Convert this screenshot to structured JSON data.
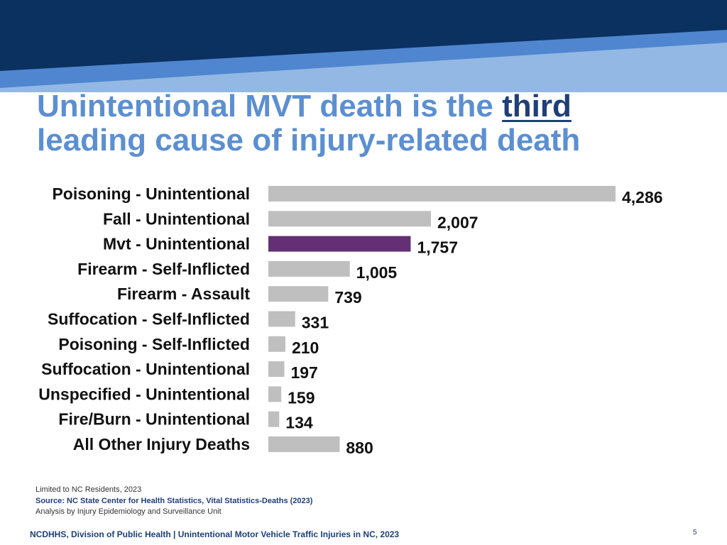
{
  "slide": {
    "title_part1": "Unintentional MVT death is the ",
    "title_emphasis": "third",
    "title_part2": "leading cause of injury-related death",
    "note_line1": "Limited to NC Residents, 2023",
    "source_line": "Source: NC State Center for Health Statistics, Vital Statistics-Deaths (2023)",
    "analysis_line": "Analysis by Injury Epidemiology and Surveillance Unit",
    "footer": "NCDHHS, Division of Public Health | Unintentional Motor Vehicle Traffic Injuries in NC, 2023",
    "page_number": "5"
  },
  "colors": {
    "banner_dark": "#0b3160",
    "banner_mid": "#4f86cf",
    "banner_light": "#93b8e4",
    "title": "#5b8fd1",
    "title_emphasis": "#1e3f78",
    "bar_default": "#bfbfbf",
    "bar_highlight": "#642f74"
  },
  "chart_data": {
    "type": "bar",
    "orientation": "horizontal",
    "categories": [
      "Poisoning - Unintentional",
      "Fall - Unintentional",
      "Mvt - Unintentional",
      "Firearm - Self-Inflicted",
      "Firearm - Assault",
      "Suffocation - Self-Inflicted",
      "Poisoning - Self-Inflicted",
      "Suffocation - Unintentional",
      "Unspecified - Unintentional",
      "Fire/Burn - Unintentional",
      "All Other Injury Deaths"
    ],
    "values": [
      4286,
      2007,
      1757,
      1005,
      739,
      331,
      210,
      197,
      159,
      134,
      880
    ],
    "value_labels": [
      "4,286",
      "2,007",
      "1,757",
      "1,005",
      "739",
      "331",
      "210",
      "197",
      "159",
      "134",
      "880"
    ],
    "highlight_index": 2,
    "xlim": [
      0,
      4286
    ],
    "grid": false,
    "legend": "none"
  }
}
